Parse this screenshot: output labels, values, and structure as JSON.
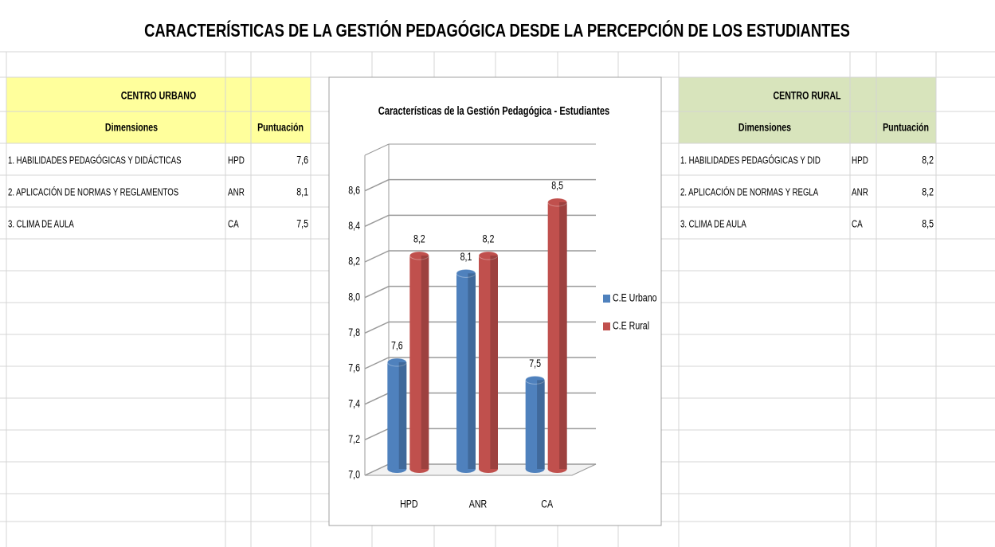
{
  "title": "CARACTERÍSTICAS DE LA GESTIÓN PEDAGÓGICA DESDE LA PERCEPCIÓN DE LOS ESTUDIANTES",
  "urban_table": {
    "title": "CENTRO URBANO",
    "headers": [
      "Dimensiones",
      "Puntuación"
    ],
    "rows": [
      [
        "1. HABILIDADES PEDAGÓGICAS Y DIDÁCTICAS",
        "HPD",
        "7,6"
      ],
      [
        "2. APLICACIÓN DE NORMAS Y REGLAMENTOS",
        "ANR",
        "8,1"
      ],
      [
        "3. CLIMA DE AULA",
        "CA",
        "7,5"
      ]
    ]
  },
  "rural_table": {
    "title": "CENTRO RURAL",
    "headers": [
      "Dimensiones",
      "Puntuación"
    ],
    "rows": [
      [
        "1. HABILIDADES PEDAGÓGICAS Y DID",
        "HPD",
        "8,2"
      ],
      [
        "2. APLICACIÓN DE NORMAS Y REGLA",
        "ANR",
        "8,2"
      ],
      [
        "3. CLIMA DE AULA",
        "CA",
        "8,5"
      ]
    ]
  },
  "chart_data": {
    "type": "bar",
    "title": "Características de la Gestión Pedagógica - Estudiantes",
    "categories": [
      "HPD",
      "ANR",
      "CA"
    ],
    "series": [
      {
        "name": "C.E Urbano",
        "color": "#4f81bd",
        "values": [
          7.6,
          8.1,
          7.5
        ],
        "value_labels": [
          "7,6",
          "8,1",
          "7,5"
        ]
      },
      {
        "name": "C.E Rural",
        "color": "#c0504d",
        "values": [
          8.2,
          8.2,
          8.5
        ],
        "value_labels": [
          "8,2",
          "8,2",
          "8,5"
        ]
      }
    ],
    "ylim": [
      7.0,
      8.8
    ],
    "yticks": [
      {
        "value": 7.0,
        "label": "7,0"
      },
      {
        "value": 7.2,
        "label": "7,2"
      },
      {
        "value": 7.4,
        "label": "7,4"
      },
      {
        "value": 7.6,
        "label": "7,6"
      },
      {
        "value": 7.8,
        "label": "7,8"
      },
      {
        "value": 8.0,
        "label": "8,0"
      },
      {
        "value": 8.2,
        "label": "8,2"
      },
      {
        "value": 8.4,
        "label": "8,4"
      },
      {
        "value": 8.6,
        "label": "8,6"
      }
    ],
    "grid": true,
    "legend": "right"
  }
}
